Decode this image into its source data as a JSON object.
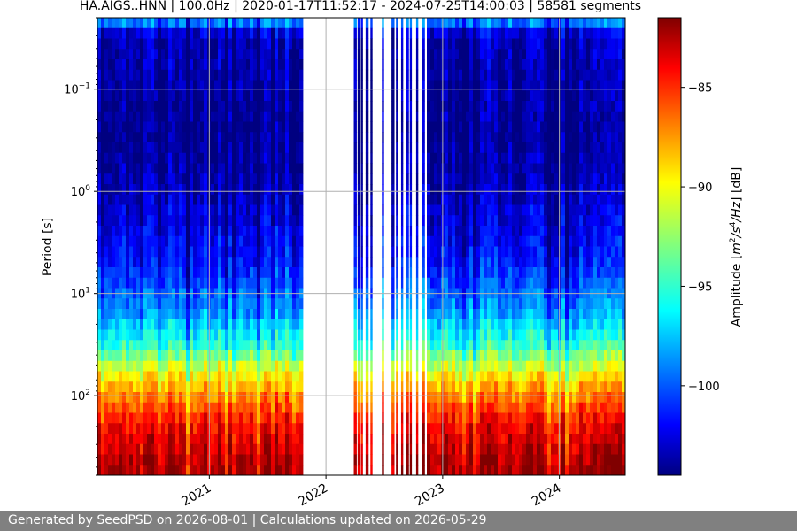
{
  "chart_data": {
    "type": "heatmap",
    "title": "HA.AIGS..HNN | 100.0Hz | 2020-01-17T11:52:17 - 2024-07-25T14:00:03 | 58581 segments",
    "ylabel": "Period [s]",
    "colorbar_label": "Amplitude [m²/s⁴/Hz] [dB]",
    "colorbar_label_parts": {
      "pre": "Amplitude [",
      "m": "m",
      "two": "2",
      "s": "/s",
      "four": "4",
      "hz": "/Hz",
      "post": "] [dB]"
    },
    "colormap": "jet",
    "y_scale": "log",
    "y_inverted": true,
    "ylim": [
      0.02,
      600
    ],
    "y_ticks": [
      {
        "value": 0.1,
        "base": "10",
        "exp": "−1"
      },
      {
        "value": 1,
        "base": "10",
        "exp": "0"
      },
      {
        "value": 10,
        "base": "10",
        "exp": "1"
      },
      {
        "value": 100,
        "base": "10",
        "exp": "2"
      }
    ],
    "x_range": [
      "2020-01-17",
      "2024-07-25"
    ],
    "x_ticks": [
      {
        "date": "2021-01-01",
        "label": "2021"
      },
      {
        "date": "2022-01-01",
        "label": "2022"
      },
      {
        "date": "2023-01-01",
        "label": "2023"
      },
      {
        "date": "2024-01-01",
        "label": "2024"
      }
    ],
    "colorbar_range": [
      -104.5,
      -81.5
    ],
    "colorbar_ticks": [
      {
        "value": -85,
        "label": "−85"
      },
      {
        "value": -90,
        "label": "−90"
      },
      {
        "value": -95,
        "label": "−95"
      },
      {
        "value": -100,
        "label": "−100"
      }
    ],
    "grid": true,
    "data_gap": [
      "2021-10-20",
      "2022-03-25"
    ],
    "sparse_period": [
      "2022-03-25",
      "2022-11-15"
    ],
    "amplitude_profile": [
      {
        "period": 0.02,
        "db": -97
      },
      {
        "period": 0.03,
        "db": -103
      },
      {
        "period": 0.1,
        "db": -103.5
      },
      {
        "period": 0.3,
        "db": -104
      },
      {
        "period": 1,
        "db": -103
      },
      {
        "period": 5,
        "db": -101
      },
      {
        "period": 15,
        "db": -98
      },
      {
        "period": 30,
        "db": -95
      },
      {
        "period": 60,
        "db": -90
      },
      {
        "period": 100,
        "db": -87
      },
      {
        "period": 200,
        "db": -84
      },
      {
        "period": 400,
        "db": -82.5
      },
      {
        "period": 600,
        "db": -82
      }
    ]
  },
  "footer": {
    "text": "Generated by SeedPSD on 2026-08-01 | Calculations updated on 2026-05-29"
  }
}
